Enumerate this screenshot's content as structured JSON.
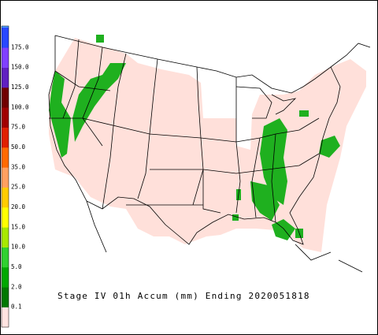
{
  "legend": {
    "labels": [
      "0.1",
      "2.0",
      "5.0",
      "10.0",
      "15.0",
      "20.0",
      "25.0",
      "35.0",
      "50.0",
      "75.0",
      "100.0",
      "125.0",
      "150.0",
      "175.0"
    ],
    "colors": [
      "#ffe4e1",
      "#007800",
      "#00a800",
      "#30d030",
      "#a8e800",
      "#ffff00",
      "#ffcc00",
      "#ffa060",
      "#ff6a00",
      "#e02000",
      "#a00000",
      "#700000",
      "#6020c0",
      "#8040ff",
      "#2848ff"
    ],
    "top_color": "#4fa0ff"
  },
  "caption": "Stage IV 01h Accum (mm) Ending 2020051818"
}
